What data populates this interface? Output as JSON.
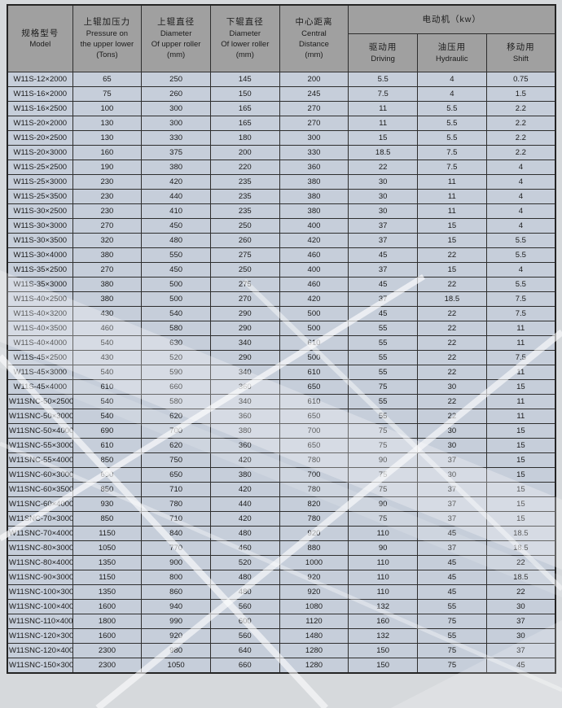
{
  "colors": {
    "header_bg": "#a0a0a0",
    "cell_bg": "#c6ceda",
    "border": "#2e2e2e",
    "page_bg": "#d6d9dc",
    "streak": "#ffffff",
    "text": "#1b1b1b"
  },
  "table": {
    "header": {
      "model": {
        "zh": "规格型号",
        "en": "Model"
      },
      "pressure": {
        "zh": "上辊加压力",
        "line2": "Pressure on",
        "line3": "the upper lower",
        "line4": "(Tons)"
      },
      "upper_roller": {
        "zh": "上辊直径",
        "line2": "Diameter",
        "line3": "Of upper roller",
        "line4": "(mm)"
      },
      "lower_roller": {
        "zh": "下辊直径",
        "line2": "Diameter",
        "line3": "Of lower roller",
        "line4": "(mm)"
      },
      "central_distance": {
        "zh": "中心距离",
        "line2": "Central",
        "line3": "Distance",
        "line4": "(mm)"
      },
      "motor_group": {
        "label": "电动机（kw）"
      },
      "driving": {
        "zh": "驱动用",
        "en": "Driving"
      },
      "hydraulic": {
        "zh": "油压用",
        "en": "Hydraulic"
      },
      "shift": {
        "zh": "移动用",
        "en": "Shift"
      }
    },
    "rows": [
      [
        "W11S-12×2000",
        "65",
        "250",
        "145",
        "200",
        "5.5",
        "4",
        "0.75"
      ],
      [
        "W11S-16×2000",
        "75",
        "260",
        "150",
        "245",
        "7.5",
        "4",
        "1.5"
      ],
      [
        "W11S-16×2500",
        "100",
        "300",
        "165",
        "270",
        "11",
        "5.5",
        "2.2"
      ],
      [
        "W11S-20×2000",
        "130",
        "300",
        "165",
        "270",
        "11",
        "5.5",
        "2.2"
      ],
      [
        "W11S-20×2500",
        "130",
        "330",
        "180",
        "300",
        "15",
        "5.5",
        "2.2"
      ],
      [
        "W11S-20×3000",
        "160",
        "375",
        "200",
        "330",
        "18.5",
        "7.5",
        "2.2"
      ],
      [
        "W11S-25×2500",
        "190",
        "380",
        "220",
        "360",
        "22",
        "7.5",
        "4"
      ],
      [
        "W11S-25×3000",
        "230",
        "420",
        "235",
        "380",
        "30",
        "11",
        "4"
      ],
      [
        "W11S-25×3500",
        "230",
        "440",
        "235",
        "380",
        "30",
        "11",
        "4"
      ],
      [
        "W11S-30×2500",
        "230",
        "410",
        "235",
        "380",
        "30",
        "11",
        "4"
      ],
      [
        "W11S-30×3000",
        "270",
        "450",
        "250",
        "400",
        "37",
        "15",
        "4"
      ],
      [
        "W11S-30×3500",
        "320",
        "480",
        "260",
        "420",
        "37",
        "15",
        "5.5"
      ],
      [
        "W11S-30×4000",
        "380",
        "550",
        "275",
        "460",
        "45",
        "22",
        "5.5"
      ],
      [
        "W11S-35×2500",
        "270",
        "450",
        "250",
        "400",
        "37",
        "15",
        "4"
      ],
      [
        "W11S-35×3000",
        "380",
        "500",
        "275",
        "460",
        "45",
        "22",
        "5.5"
      ],
      [
        "W11S-40×2500",
        "380",
        "500",
        "270",
        "420",
        "37",
        "18.5",
        "7.5"
      ],
      [
        "W11S-40×3200",
        "430",
        "540",
        "290",
        "500",
        "45",
        "22",
        "7.5"
      ],
      [
        "W11S-40×3500",
        "460",
        "580",
        "290",
        "500",
        "55",
        "22",
        "11"
      ],
      [
        "W11S-40×4000",
        "540",
        "630",
        "340",
        "610",
        "55",
        "22",
        "11"
      ],
      [
        "W11S-45×2500",
        "430",
        "520",
        "290",
        "500",
        "55",
        "22",
        "7.5"
      ],
      [
        "W11S-45×3000",
        "540",
        "590",
        "340",
        "610",
        "55",
        "22",
        "11"
      ],
      [
        "W11S-45×4000",
        "610",
        "660",
        "360",
        "650",
        "75",
        "30",
        "15"
      ],
      [
        "W11SNC-50×2500",
        "540",
        "580",
        "340",
        "610",
        "55",
        "22",
        "11"
      ],
      [
        "W11SNC-50×3000",
        "540",
        "620",
        "360",
        "650",
        "55",
        "22",
        "11"
      ],
      [
        "W11SNC-50×4000",
        "690",
        "700",
        "380",
        "700",
        "75",
        "30",
        "15"
      ],
      [
        "W11SNC-55×3000",
        "610",
        "620",
        "360",
        "650",
        "75",
        "30",
        "15"
      ],
      [
        "W11SNC-55×4000",
        "850",
        "750",
        "420",
        "780",
        "90",
        "37",
        "15"
      ],
      [
        "W11SNC-60×3000",
        "690",
        "650",
        "380",
        "700",
        "75",
        "30",
        "15"
      ],
      [
        "W11SNC-60×3500",
        "850",
        "710",
        "420",
        "780",
        "75",
        "37",
        "15"
      ],
      [
        "W11SNC-60×4000",
        "930",
        "780",
        "440",
        "820",
        "90",
        "37",
        "15"
      ],
      [
        "W11SNC-70×3000",
        "850",
        "710",
        "420",
        "780",
        "75",
        "37",
        "15"
      ],
      [
        "W11SNC-70×4000",
        "1150",
        "840",
        "480",
        "920",
        "110",
        "45",
        "18.5"
      ],
      [
        "W11SNC-80×3000",
        "1050",
        "770",
        "460",
        "880",
        "90",
        "37",
        "18.5"
      ],
      [
        "W11SNC-80×4000",
        "1350",
        "900",
        "520",
        "1000",
        "110",
        "45",
        "22"
      ],
      [
        "W11SNC-90×3000",
        "1150",
        "800",
        "480",
        "920",
        "110",
        "45",
        "18.5"
      ],
      [
        "W11SNC-100×3000",
        "1350",
        "860",
        "480",
        "920",
        "110",
        "45",
        "22"
      ],
      [
        "W11SNC-100×4000",
        "1600",
        "940",
        "560",
        "1080",
        "132",
        "55",
        "30"
      ],
      [
        "W11SNC-110×4000",
        "1800",
        "990",
        "600",
        "1120",
        "160",
        "75",
        "37"
      ],
      [
        "W11SNC-120×3000",
        "1600",
        "920",
        "560",
        "1480",
        "132",
        "55",
        "30"
      ],
      [
        "W11SNC-120×4000",
        "2300",
        "980",
        "640",
        "1280",
        "150",
        "75",
        "37"
      ],
      [
        "W11SNC-150×3000",
        "2300",
        "1050",
        "660",
        "1280",
        "150",
        "75",
        "45"
      ]
    ]
  }
}
